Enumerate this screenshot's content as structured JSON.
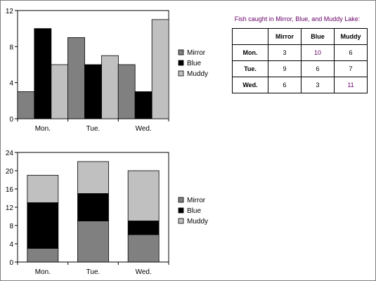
{
  "table": {
    "title": "Fish caught in Mirror, Blue, and Muddy Lake:",
    "columns": [
      "",
      "Mirror",
      "Blue",
      "Muddy"
    ],
    "rows": [
      {
        "label": "Mon.",
        "values": [
          "3",
          "10",
          "6"
        ]
      },
      {
        "label": "Tue.",
        "values": [
          "9",
          "6",
          "7"
        ]
      },
      {
        "label": "Wed.",
        "values": [
          "6",
          "3",
          "11"
        ]
      }
    ],
    "value_color": "#660066"
  },
  "chart_data": [
    {
      "type": "bar",
      "mode": "grouped",
      "categories": [
        "Mon.",
        "Tue.",
        "Wed."
      ],
      "series": [
        {
          "name": "Mirror",
          "values": [
            3,
            9,
            6
          ],
          "color": "#808080"
        },
        {
          "name": "Blue",
          "values": [
            10,
            6,
            3
          ],
          "color": "#000000"
        },
        {
          "name": "Muddy",
          "values": [
            6,
            7,
            11
          ],
          "color": "#c0c0c0"
        }
      ],
      "ylim": [
        0,
        12
      ],
      "yticks": [
        "0",
        "4",
        "8",
        "12"
      ],
      "grid": false,
      "legend": "right"
    },
    {
      "type": "bar",
      "mode": "stacked",
      "categories": [
        "Mon.",
        "Tue.",
        "Wed."
      ],
      "series": [
        {
          "name": "Mirror",
          "values": [
            3,
            9,
            6
          ],
          "color": "#808080"
        },
        {
          "name": "Blue",
          "values": [
            10,
            6,
            3
          ],
          "color": "#000000"
        },
        {
          "name": "Muddy",
          "values": [
            6,
            7,
            11
          ],
          "color": "#c0c0c0"
        }
      ],
      "ylim": [
        0,
        24
      ],
      "yticks": [
        "0",
        "4",
        "8",
        "12",
        "16",
        "20",
        "24"
      ],
      "grid": false,
      "legend": "right"
    }
  ]
}
